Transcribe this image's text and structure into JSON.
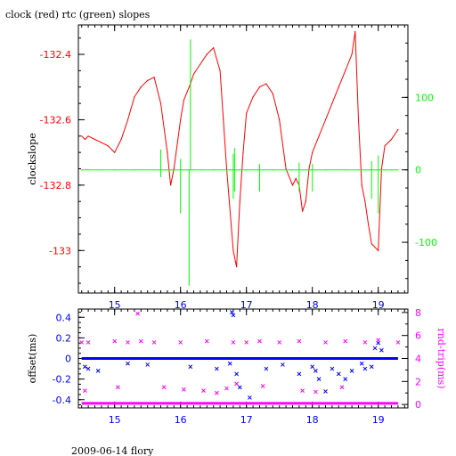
{
  "figure": {
    "title": "clock (red) rtc (green) slopes",
    "footer": "2009-06-14 flory"
  },
  "chart_data": [
    {
      "type": "line",
      "title": "clock (red) rtc (green) slopes",
      "xlabel": "",
      "ylabel": "clockslope",
      "y2label": "",
      "xlim": [
        14.45,
        19.45
      ],
      "ylim": [
        -133.13,
        -132.31
      ],
      "y2lim": [
        -170,
        200
      ],
      "xticks": [
        15,
        16,
        17,
        18,
        19
      ],
      "yticks": [
        -132.4,
        -132.6,
        -132.8,
        -133
      ],
      "yticklabels": [
        "-132.4",
        "-132.6",
        "-132.8",
        "-133"
      ],
      "y2ticks": [
        100,
        0,
        -100
      ],
      "y2ticklabels": [
        "100",
        "0",
        "-100"
      ],
      "grid": false,
      "series": [
        {
          "name": "clock",
          "axis": "left",
          "color": "#ff0000",
          "x": [
            14.5,
            14.55,
            14.6,
            14.7,
            14.8,
            14.9,
            15.0,
            15.1,
            15.2,
            15.3,
            15.4,
            15.5,
            15.6,
            15.7,
            15.8,
            15.85,
            15.9,
            16.0,
            16.05,
            16.15,
            16.2,
            16.3,
            16.4,
            16.5,
            16.6,
            16.65,
            16.7,
            16.8,
            16.85,
            16.9,
            16.95,
            17.0,
            17.1,
            17.2,
            17.3,
            17.4,
            17.5,
            17.6,
            17.7,
            17.75,
            17.8,
            17.85,
            17.9,
            17.95,
            18.0,
            18.1,
            18.2,
            18.3,
            18.4,
            18.5,
            18.6,
            18.65,
            18.7,
            18.75,
            18.8,
            18.85,
            18.9,
            19.0,
            19.05,
            19.1,
            19.2,
            19.3
          ],
          "y": [
            -132.65,
            -132.66,
            -132.65,
            -132.66,
            -132.67,
            -132.68,
            -132.7,
            -132.66,
            -132.6,
            -132.53,
            -132.5,
            -132.48,
            -132.47,
            -132.55,
            -132.7,
            -132.8,
            -132.75,
            -132.6,
            -132.54,
            -132.49,
            -132.46,
            -132.43,
            -132.4,
            -132.38,
            -132.45,
            -132.6,
            -132.75,
            -133.0,
            -133.05,
            -132.85,
            -132.7,
            -132.58,
            -132.53,
            -132.5,
            -132.49,
            -132.52,
            -132.6,
            -132.75,
            -132.8,
            -132.78,
            -132.8,
            -132.88,
            -132.85,
            -132.75,
            -132.7,
            -132.65,
            -132.6,
            -132.55,
            -132.5,
            -132.45,
            -132.4,
            -132.33,
            -132.6,
            -132.8,
            -132.85,
            -132.92,
            -132.98,
            -133.0,
            -132.75,
            -132.68,
            -132.66,
            -132.63
          ]
        },
        {
          "name": "rtc",
          "axis": "right",
          "color": "#00ff00",
          "x": [
            14.5,
            14.6,
            14.8,
            15.0,
            15.3,
            15.6,
            15.8,
            15.9,
            16.0,
            16.1,
            16.15,
            16.2,
            16.3,
            16.5,
            16.7,
            16.8,
            16.9,
            17.0,
            17.2,
            17.4,
            17.6,
            17.8,
            18.0,
            18.2,
            18.5,
            18.7,
            18.9,
            19.0,
            19.05,
            19.1,
            19.2,
            19.3
          ],
          "y": [
            0,
            0,
            0,
            0,
            0,
            0,
            0,
            0,
            0,
            0,
            0,
            0,
            0,
            0,
            0,
            0,
            0,
            0,
            0,
            0,
            0,
            0,
            0,
            0,
            0,
            0,
            0,
            0,
            0,
            0,
            0,
            0
          ],
          "spikes": [
            {
              "x": 15.7,
              "min": -10,
              "max": 28
            },
            {
              "x": 16.0,
              "min": -60,
              "max": 15
            },
            {
              "x": 16.13,
              "min": -160,
              "max": 0
            },
            {
              "x": 16.15,
              "min": 0,
              "max": 180
            },
            {
              "x": 16.8,
              "min": -40,
              "max": 22
            },
            {
              "x": 16.82,
              "min": -30,
              "max": 30
            },
            {
              "x": 17.2,
              "min": -30,
              "max": 8
            },
            {
              "x": 17.8,
              "min": -30,
              "max": 10
            },
            {
              "x": 18.0,
              "min": -30,
              "max": 8
            },
            {
              "x": 18.9,
              "min": -40,
              "max": 12
            },
            {
              "x": 19.0,
              "min": -60,
              "max": 20
            }
          ]
        }
      ]
    },
    {
      "type": "scatter",
      "xlabel": "",
      "ylabel": "offset(ms)",
      "y2label": "rnd-trip(ms)",
      "xlim": [
        14.45,
        19.45
      ],
      "ylim": [
        -0.48,
        0.48
      ],
      "y2lim": [
        -0.3,
        8.3
      ],
      "xticks": [
        15,
        16,
        17,
        18,
        19
      ],
      "yticks": [
        0.4,
        0.2,
        0,
        -0.2,
        -0.4
      ],
      "yticklabels": [
        "0.4",
        "0.2",
        "0",
        "-0.2",
        "-0.4"
      ],
      "y2ticks": [
        8,
        6,
        4,
        2,
        0
      ],
      "y2ticklabels": [
        "8",
        "6",
        "4",
        "2",
        "0"
      ],
      "grid": false,
      "series": [
        {
          "name": "offset",
          "axis": "left",
          "color": "#0000ff",
          "marker": "x",
          "x": [
            14.55,
            14.6,
            14.75,
            15.2,
            15.5,
            16.15,
            16.55,
            16.75,
            16.78,
            16.8,
            16.85,
            16.9,
            17.05,
            17.3,
            17.55,
            17.8,
            18.0,
            18.05,
            18.1,
            18.2,
            18.3,
            18.4,
            18.5,
            18.6,
            18.75,
            18.8,
            18.9,
            18.95,
            19.0,
            19.05
          ],
          "y": [
            -0.08,
            -0.1,
            -0.12,
            -0.05,
            -0.06,
            -0.08,
            -0.1,
            -0.05,
            0.45,
            0.42,
            -0.15,
            -0.28,
            -0.38,
            -0.1,
            -0.06,
            -0.15,
            -0.08,
            -0.12,
            -0.2,
            -0.32,
            -0.1,
            -0.15,
            -0.2,
            -0.12,
            -0.05,
            -0.1,
            -0.08,
            0.1,
            0.15,
            0.08
          ],
          "baseline": {
            "value": 0,
            "x_from": 14.5,
            "x_to": 19.3
          }
        },
        {
          "name": "rnd-trip",
          "axis": "right",
          "color": "#ff00ff",
          "marker": "x",
          "x": [
            14.5,
            14.6,
            15.0,
            15.2,
            15.4,
            15.6,
            16.0,
            16.4,
            16.8,
            17.0,
            17.2,
            17.5,
            17.8,
            18.2,
            18.5,
            18.8,
            19.0,
            19.3,
            14.55,
            15.05,
            15.35,
            15.75,
            16.05,
            16.35,
            16.55,
            16.7,
            16.85,
            17.25,
            17.85,
            18.05,
            18.45
          ],
          "y": [
            5.4,
            5.4,
            5.5,
            5.4,
            5.5,
            5.4,
            5.4,
            5.5,
            5.4,
            5.4,
            5.5,
            5.4,
            5.5,
            5.4,
            5.5,
            5.4,
            5.6,
            5.4,
            1.2,
            1.5,
            7.9,
            1.5,
            1.3,
            1.2,
            1.0,
            1.4,
            1.8,
            1.6,
            1.2,
            1.1,
            1.5
          ],
          "baseline": {
            "value": 0.1,
            "x_from": 14.5,
            "x_to": 19.3
          }
        }
      ]
    }
  ]
}
